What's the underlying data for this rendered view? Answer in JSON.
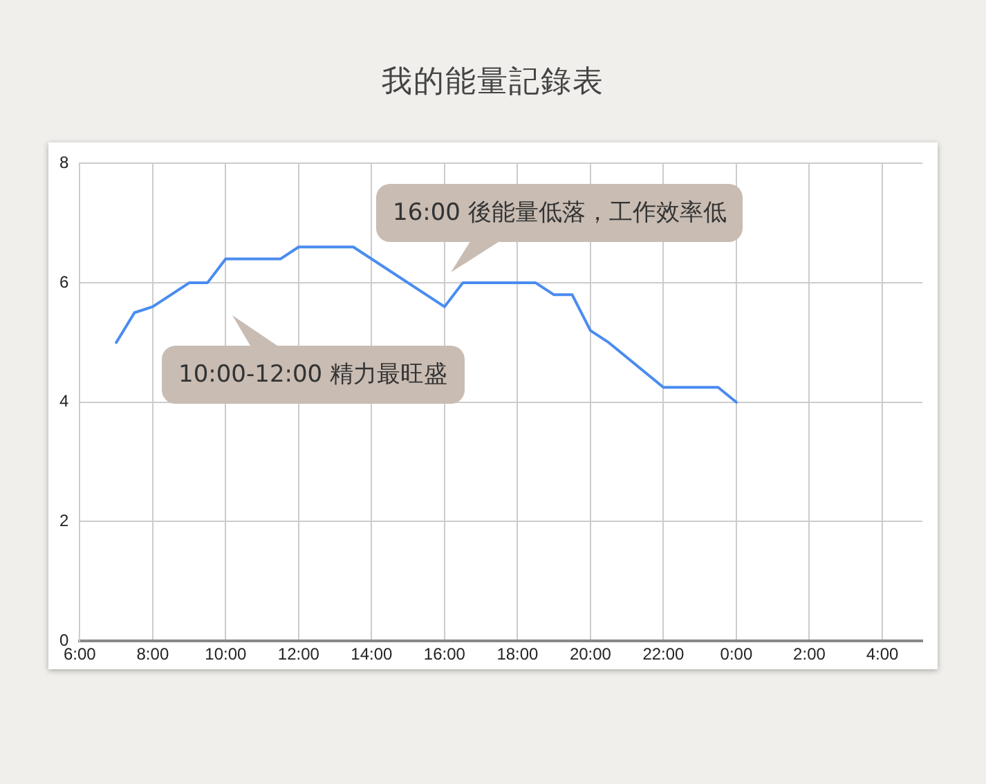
{
  "chart_data": {
    "type": "line",
    "title": "我的能量記錄表",
    "x": [
      "--01-01T07:00",
      "--01-01T07:30",
      "--01-01T08:00",
      "--01-01T09:00",
      "--01-01T09:30",
      "--01-01T10:00",
      "--01-01T11:30",
      "--01-01T12:00",
      "--01-01T13:30",
      "--01-01T16:00",
      "--01-01T16:30",
      "--01-01T18:30",
      "--01-01T19:00",
      "--01-01T19:30",
      "--01-01T20:00",
      "--01-01T20:30",
      "--01-01T22:00",
      "--01-01T23:30",
      "--01-02T00:00"
    ],
    "series": [
      {
        "color": "#4a8cf0",
        "values": [
          5.0,
          5.5,
          5.6,
          6.0,
          6.0,
          6.4,
          6.4,
          6.6,
          6.6,
          5.6,
          6.0,
          6.0,
          5.8,
          5.8,
          5.2,
          5.0,
          4.25,
          4.25,
          4.0
        ]
      }
    ],
    "xlim": [
      "--01-01T06:00",
      "--01-02T05:06"
    ],
    "xticks": [
      {
        "value": "--01-01T06:00",
        "label": "6:00"
      },
      {
        "value": "--01-01T08:00",
        "label": "8:00"
      },
      {
        "value": "--01-01T10:00",
        "label": "10:00"
      },
      {
        "value": "--01-01T12:00",
        "label": "12:00"
      },
      {
        "value": "--01-01T14:00",
        "label": "14:00"
      },
      {
        "value": "--01-01T16:00",
        "label": "16:00"
      },
      {
        "value": "--01-01T18:00",
        "label": "18:00"
      },
      {
        "value": "--01-01T20:00",
        "label": "20:00"
      },
      {
        "value": "--01-01T22:00",
        "label": "22:00"
      },
      {
        "value": "--01-02T00:00",
        "label": "0:00"
      },
      {
        "value": "--01-02T02:00",
        "label": "2:00"
      },
      {
        "value": "--01-02T04:00",
        "label": "4:00"
      }
    ],
    "ylim": [
      0,
      8
    ],
    "yticks": [
      0,
      2,
      4,
      6,
      8
    ],
    "annotations": [
      "10:00-12:00 精力最旺盛",
      "16:00 後能量低落，工作效率低"
    ],
    "grid": true,
    "legend": false,
    "marker": "none",
    "line_style": "solid"
  }
}
